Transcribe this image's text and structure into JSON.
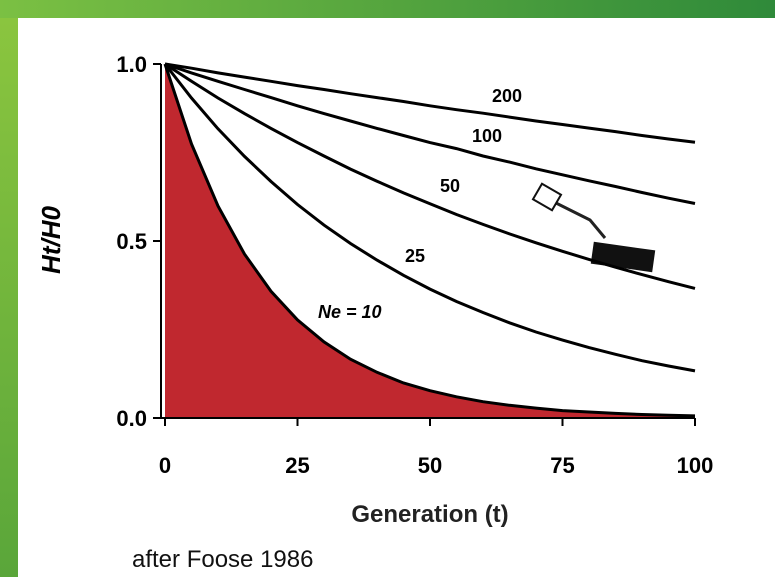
{
  "chart_data": {
    "type": "line",
    "x_label": "Generation (t)",
    "y_label": "Ht/H0",
    "caption": "after Foose 1986",
    "x": [
      0,
      5,
      10,
      15,
      20,
      25,
      30,
      35,
      40,
      45,
      50,
      55,
      60,
      65,
      70,
      75,
      80,
      85,
      90,
      95,
      100
    ],
    "series": [
      {
        "name": "Ne = 10",
        "color": "#c0282f",
        "fill": true,
        "values": [
          1,
          0.774,
          0.599,
          0.463,
          0.358,
          0.277,
          0.215,
          0.166,
          0.129,
          0.099,
          0.077,
          0.06,
          0.046,
          0.036,
          0.028,
          0.021,
          0.017,
          0.013,
          0.01,
          0.008,
          0.006
        ]
      },
      {
        "name": "25",
        "color": "#000000",
        "values": [
          1,
          0.904,
          0.817,
          0.739,
          0.668,
          0.603,
          0.545,
          0.493,
          0.446,
          0.403,
          0.364,
          0.329,
          0.298,
          0.269,
          0.243,
          0.22,
          0.199,
          0.18,
          0.162,
          0.147,
          0.133
        ]
      },
      {
        "name": "50",
        "color": "#000000",
        "values": [
          1,
          0.951,
          0.904,
          0.86,
          0.818,
          0.778,
          0.74,
          0.703,
          0.669,
          0.636,
          0.605,
          0.575,
          0.547,
          0.52,
          0.495,
          0.471,
          0.448,
          0.426,
          0.405,
          0.385,
          0.366
        ]
      },
      {
        "name": "100",
        "color": "#000000",
        "values": [
          1,
          0.975,
          0.951,
          0.928,
          0.905,
          0.882,
          0.86,
          0.839,
          0.818,
          0.798,
          0.778,
          0.761,
          0.74,
          0.723,
          0.704,
          0.687,
          0.67,
          0.654,
          0.637,
          0.621,
          0.606
        ]
      },
      {
        "name": "200",
        "color": "#000000",
        "values": [
          1,
          0.988,
          0.975,
          0.963,
          0.951,
          0.939,
          0.928,
          0.916,
          0.905,
          0.894,
          0.882,
          0.871,
          0.861,
          0.85,
          0.839,
          0.829,
          0.819,
          0.809,
          0.798,
          0.788,
          0.779
        ]
      }
    ],
    "xlim": [
      0,
      100
    ],
    "xticks": [
      0,
      25,
      50,
      75,
      100
    ],
    "ylim": [
      0,
      1
    ],
    "yticks": [
      {
        "value": 0,
        "label": "0.0"
      },
      {
        "value": 0.5,
        "label": "0.5"
      },
      {
        "value": 1,
        "label": "1.0"
      }
    ],
    "grid": false
  }
}
